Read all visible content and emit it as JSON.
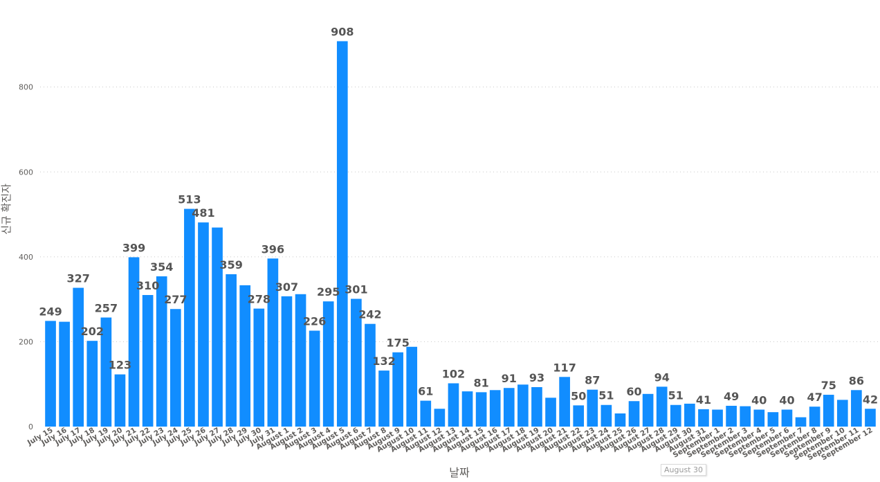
{
  "chart_data": {
    "type": "bar",
    "xlabel": "날짜",
    "ylabel": "신규 확진자",
    "ylim": [
      0,
      930
    ],
    "yticks": [
      0,
      200,
      400,
      600,
      800
    ],
    "grid": "horizontal-dotted",
    "bar_color": "#118DFF",
    "categories": [
      "July 15",
      "July 16",
      "July 17",
      "July 18",
      "July 19",
      "July 20",
      "July 21",
      "July 22",
      "July 23",
      "July 24",
      "July 25",
      "July 26",
      "July 27",
      "July 28",
      "July 29",
      "July 30",
      "July 31",
      "August 1",
      "August 2",
      "August 3",
      "August 4",
      "August 5",
      "August 6",
      "August 7",
      "August 8",
      "August 9",
      "August 10",
      "August 11",
      "August 12",
      "August 13",
      "August 14",
      "August 15",
      "August 16",
      "August 17",
      "August 18",
      "August 19",
      "August 20",
      "August 21",
      "August 22",
      "August 23",
      "August 24",
      "August 25",
      "August 26",
      "August 27",
      "August 28",
      "August 29",
      "August 30",
      "August 31",
      "September 1",
      "September 2",
      "September 3",
      "September 4",
      "September 5",
      "September 6",
      "September 7",
      "September 8",
      "September 9",
      "September 10",
      "September 11",
      "September 12"
    ],
    "values": [
      249,
      247,
      327,
      202,
      257,
      123,
      399,
      310,
      354,
      277,
      513,
      481,
      469,
      359,
      333,
      278,
      396,
      307,
      312,
      226,
      295,
      908,
      301,
      242,
      132,
      175,
      188,
      61,
      42,
      102,
      83,
      81,
      86,
      91,
      99,
      93,
      68,
      117,
      50,
      87,
      51,
      31,
      60,
      77,
      94,
      51,
      54,
      41,
      40,
      49,
      48,
      40,
      34,
      40,
      22,
      47,
      75,
      63,
      86,
      42
    ],
    "labels": [
      "249",
      "",
      "327",
      "202",
      "257",
      "123",
      "399",
      "310",
      "354",
      "277",
      "513",
      "481",
      "",
      "359",
      "",
      "278",
      "396",
      "307",
      "",
      "226",
      "295",
      "908",
      "301",
      "242",
      "132",
      "175",
      "",
      "61",
      "",
      "102",
      "",
      "81",
      "",
      "91",
      "",
      "93",
      "",
      "117",
      "50",
      "87",
      "51",
      "",
      "60",
      "",
      "94",
      "51",
      "",
      "41",
      "",
      "49",
      "",
      "40",
      "",
      "40",
      "",
      "47",
      "75",
      "",
      "86",
      "42"
    ]
  },
  "tooltip": "August 30",
  "colors": {
    "bar": "#118DFF",
    "label": "#555555",
    "axis_text": "#605E5C",
    "grid": "#c8c8c8"
  }
}
